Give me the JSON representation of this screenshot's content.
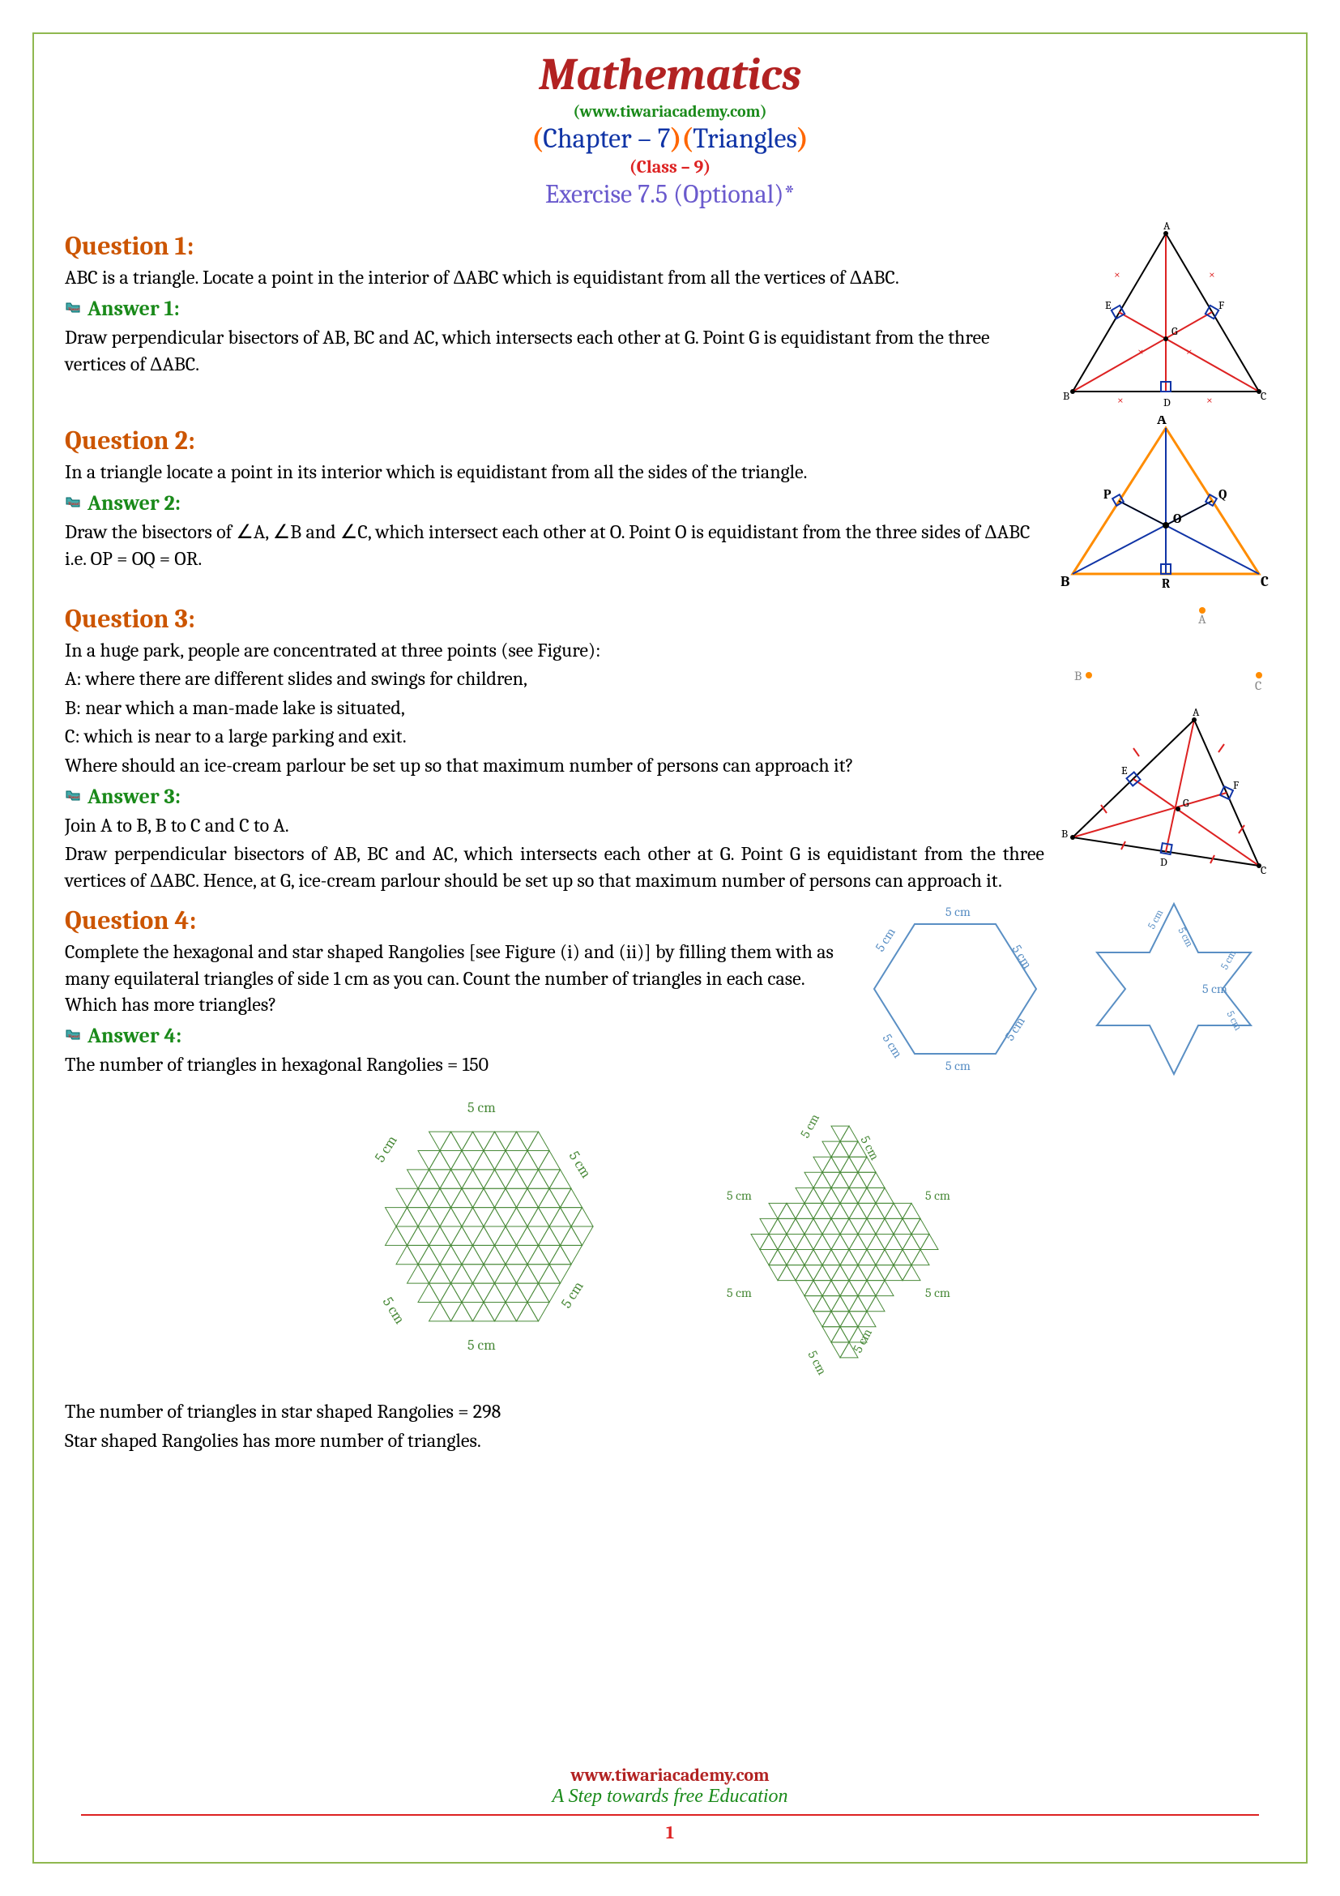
{
  "header": {
    "title": "Mathematics",
    "url": "(www.tiwariacademy.com)",
    "chapterPre": "(",
    "chapterText": "Chapter – 7",
    "chapterMid": ")(",
    "chapterSubject": "Triangles",
    "chapterPost": ")",
    "class": "(Class – 9)",
    "exercise": "Exercise 7.5 (Optional)*"
  },
  "q1": {
    "label": "Question 1:",
    "text": "ABC is a triangle. Locate a point in the interior of ΔABC which is equidistant from all the vertices of ΔABC.",
    "answerLabel": "Answer 1:",
    "answer": "Draw perpendicular bisectors of AB, BC and AC, which intersects each other at G. Point G is equidistant from the three vertices of ΔABC.",
    "fig": {
      "A": "A",
      "B": "B",
      "C": "C",
      "D": "D",
      "E": "E",
      "F": "F",
      "G": "G",
      "stroke": "#000",
      "bisector": "#d22",
      "perp": "#1034a6",
      "tick": "#d22"
    }
  },
  "q2": {
    "label": "Question 2:",
    "text": "In a triangle locate a point in its interior which is equidistant from all the sides of the triangle.",
    "answerLabel": "Answer 2:",
    "answer": "Draw the bisectors of ∠A, ∠B and ∠C, which intersect each other at O. Point O is equidistant from the three sides of ΔABC i.e. OP = OQ = OR.",
    "fig": {
      "A": "A",
      "B": "B",
      "C": "C",
      "P": "P",
      "Q": "Q",
      "R": "R",
      "O": "O",
      "stroke": "#ff8c00",
      "bisector": "#1034a6",
      "perp": "#1034a6"
    }
  },
  "q3": {
    "label": "Question 3:",
    "text1": "In a huge park, people are concentrated at three points (see Figure):",
    "text2": "A: where there are different slides and swings for children,",
    "text3": "B: near which a man-made lake is situated,",
    "text4": "C: which is near to a large parking and exit.",
    "text5": "Where should an ice-cream parlour be set up so that maximum number of persons can approach it?",
    "answerLabel": "Answer 3:",
    "answer1": "Join A to B, B to C and C to A.",
    "answer2": "Draw perpendicular bisectors of AB, BC and AC, which intersects each other at G. Point G is equidistant from the three vertices of ΔABC. Hence, at G, ice-cream parlour should be set up so that maximum number of persons can approach it.",
    "pts": {
      "A": "A",
      "B": "B",
      "C": "C",
      "dot": "#ff8c00",
      "text": "#888"
    }
  },
  "q4": {
    "label": "Question 4:",
    "text": "Complete the hexagonal and star shaped Rangolies [see Figure (i) and (ii)] by filling them with as many equilateral triangles of side 1 cm as you can. Count the number of triangles in each case. Which has more triangles?",
    "answerLabel": "Answer 4:",
    "answer1": "The number of triangles in hexagonal Rangolies = 150",
    "answer2": "The number of triangles in star shaped Rangolies = 298",
    "answer3": "Star shaped Rangolies has more number of triangles.",
    "label5cm": "5 cm",
    "outlineColor": "#5a8fc4",
    "fillColor": "#4a8a3a"
  },
  "footer": {
    "url": "www.tiwariacademy.com",
    "tagline": "A Step towards free Education",
    "page": "1"
  }
}
